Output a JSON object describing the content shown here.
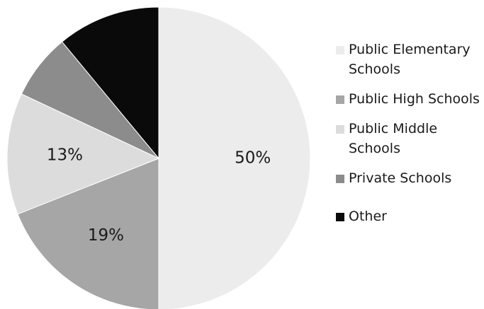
{
  "chart_data": {
    "type": "pie",
    "slices": [
      {
        "label": "Public Elementary Schools",
        "value": 50,
        "data_label": "50%",
        "color": "#ececec"
      },
      {
        "label": "Public High Schools",
        "value": 19,
        "data_label": "19%",
        "color": "#a6a6a6"
      },
      {
        "label": "Public Middle Schools",
        "value": 13,
        "data_label": "13%",
        "color": "#dcdcdc"
      },
      {
        "label": "Private Schools",
        "value": 7,
        "data_label": "",
        "color": "#8c8c8c"
      },
      {
        "label": "Other",
        "value": 11,
        "data_label": "",
        "color": "#0a0a0a"
      }
    ],
    "legend_position": "right",
    "start_angle_deg": 0,
    "direction": "clockwise"
  },
  "legend": {
    "items": [
      {
        "label": "Public Elementary Schools",
        "color": "#ececec"
      },
      {
        "label": "Public High Schools",
        "color": "#a6a6a6"
      },
      {
        "label": "Public Middle Schools",
        "color": "#dcdcdc"
      },
      {
        "label": "Private Schools",
        "color": "#8c8c8c"
      },
      {
        "label": "Other",
        "color": "#0a0a0a"
      }
    ]
  }
}
